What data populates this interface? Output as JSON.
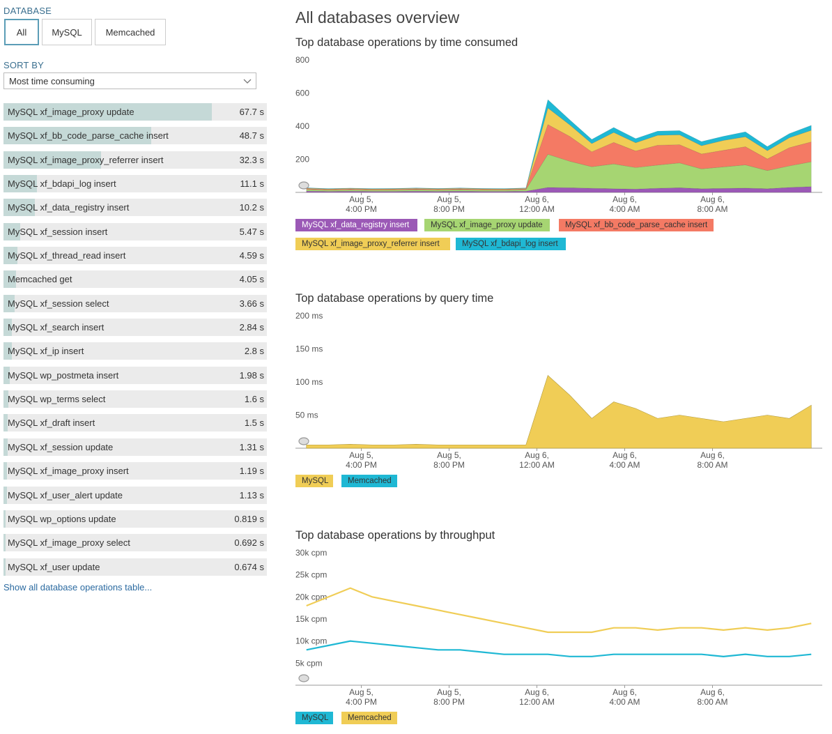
{
  "sidebar": {
    "database_label": "DATABASE",
    "filters": [
      {
        "label": "All",
        "active": true
      },
      {
        "label": "MySQL",
        "active": false
      },
      {
        "label": "Memcached",
        "active": false
      }
    ],
    "sort_label": "SORT BY",
    "sort_value": "Most time consuming",
    "operations": [
      {
        "name": "MySQL xf_image_proxy update",
        "value": "67.7 s",
        "fraction": 0.79
      },
      {
        "name": "MySQL xf_bb_code_parse_cache insert",
        "value": "48.7 s",
        "fraction": 0.56
      },
      {
        "name": "MySQL xf_image_proxy_referrer insert",
        "value": "32.3 s",
        "fraction": 0.37
      },
      {
        "name": "MySQL xf_bdapi_log insert",
        "value": "11.1 s",
        "fraction": 0.128
      },
      {
        "name": "MySQL xf_data_registry insert",
        "value": "10.2 s",
        "fraction": 0.118
      },
      {
        "name": "MySQL xf_session insert",
        "value": "5.47 s",
        "fraction": 0.063
      },
      {
        "name": "MySQL xf_thread_read insert",
        "value": "4.59 s",
        "fraction": 0.053
      },
      {
        "name": "Memcached get",
        "value": "4.05 s",
        "fraction": 0.047
      },
      {
        "name": "MySQL xf_session select",
        "value": "3.66 s",
        "fraction": 0.042
      },
      {
        "name": "MySQL xf_search insert",
        "value": "2.84 s",
        "fraction": 0.033
      },
      {
        "name": "MySQL xf_ip insert",
        "value": "2.8 s",
        "fraction": 0.032
      },
      {
        "name": "MySQL wp_postmeta insert",
        "value": "1.98 s",
        "fraction": 0.023
      },
      {
        "name": "MySQL wp_terms select",
        "value": "1.6 s",
        "fraction": 0.018
      },
      {
        "name": "MySQL xf_draft insert",
        "value": "1.5 s",
        "fraction": 0.017
      },
      {
        "name": "MySQL xf_session update",
        "value": "1.31 s",
        "fraction": 0.015
      },
      {
        "name": "MySQL xf_image_proxy insert",
        "value": "1.19 s",
        "fraction": 0.014
      },
      {
        "name": "MySQL xf_user_alert update",
        "value": "1.13 s",
        "fraction": 0.013
      },
      {
        "name": "MySQL wp_options update",
        "value": "0.819 s",
        "fraction": 0.009
      },
      {
        "name": "MySQL xf_image_proxy select",
        "value": "0.692 s",
        "fraction": 0.008
      },
      {
        "name": "MySQL xf_user update",
        "value": "0.674 s",
        "fraction": 0.008
      }
    ],
    "show_all": "Show all database operations table..."
  },
  "main": {
    "title": "All databases overview"
  },
  "chart_data": [
    {
      "type": "area",
      "stacked": true,
      "title": "Top database operations by time consumed",
      "yticks": [
        "800",
        "600",
        "400",
        "200"
      ],
      "ylim": [
        0,
        800
      ],
      "xticks": [
        "Aug 5,\n4:00 PM",
        "Aug 5,\n8:00 PM",
        "Aug 6,\n12:00 AM",
        "Aug 6,\n4:00 AM",
        "Aug 6,\n8:00 AM"
      ],
      "x_hours": [
        0.5,
        1.5,
        2.5,
        3.5,
        4.5,
        5.5,
        6.5,
        7.5,
        8.5,
        9.5,
        10.5,
        11.5,
        12.5,
        13.5,
        14.5,
        15.5,
        16.5,
        17.5,
        18.5,
        19.5,
        20.5,
        21.5,
        22.5,
        23.5
      ],
      "legend_placement": "bottom",
      "series": [
        {
          "name": "MySQL xf_data_registry insert",
          "color": "#9b59b6",
          "values": [
            8,
            6,
            7,
            6,
            6,
            7,
            6,
            7,
            6,
            6,
            7,
            30,
            28,
            25,
            22,
            20,
            25,
            28,
            22,
            24,
            26,
            22,
            30,
            35
          ]
        },
        {
          "name": "MySQL xf_image_proxy update",
          "color": "#a6d572",
          "values": [
            10,
            8,
            9,
            8,
            9,
            10,
            9,
            10,
            9,
            8,
            10,
            200,
            160,
            130,
            150,
            130,
            140,
            150,
            120,
            130,
            140,
            110,
            130,
            150
          ]
        },
        {
          "name": "MySQL xf_bb_code_parse_cache insert",
          "color": "#f47a64",
          "values": [
            5,
            4,
            5,
            4,
            4,
            5,
            4,
            5,
            4,
            4,
            5,
            180,
            150,
            90,
            130,
            100,
            120,
            110,
            90,
            100,
            110,
            70,
            110,
            120
          ]
        },
        {
          "name": "MySQL xf_image_proxy_referrer insert",
          "color": "#f0cd56",
          "values": [
            3,
            3,
            3,
            3,
            3,
            3,
            3,
            3,
            3,
            3,
            3,
            100,
            70,
            50,
            60,
            50,
            60,
            60,
            50,
            60,
            60,
            50,
            60,
            70
          ]
        },
        {
          "name": "MySQL xf_bdapi_log insert",
          "color": "#1fb8d4",
          "values": [
            2,
            2,
            2,
            2,
            2,
            2,
            2,
            2,
            2,
            2,
            2,
            50,
            30,
            25,
            30,
            25,
            25,
            25,
            25,
            25,
            30,
            25,
            25,
            30
          ]
        }
      ]
    },
    {
      "type": "area",
      "title": "Top database operations by query time",
      "yticks": [
        "200 ms",
        "150 ms",
        "100 ms",
        "50 ms"
      ],
      "ylim": [
        0,
        200
      ],
      "xticks": [
        "Aug 5,\n4:00 PM",
        "Aug 5,\n8:00 PM",
        "Aug 6,\n12:00 AM",
        "Aug 6,\n4:00 AM",
        "Aug 6,\n8:00 AM"
      ],
      "x_hours": [
        0.5,
        1.5,
        2.5,
        3.5,
        4.5,
        5.5,
        6.5,
        7.5,
        8.5,
        9.5,
        10.5,
        11.5,
        12.5,
        13.5,
        14.5,
        15.5,
        16.5,
        17.5,
        18.5,
        19.5,
        20.5,
        21.5,
        22.5,
        23.5
      ],
      "legend_placement": "bottom",
      "series": [
        {
          "name": "MySQL",
          "color": "#f0cd56",
          "values": [
            5,
            5,
            6,
            5,
            5,
            6,
            5,
            5,
            5,
            5,
            5,
            110,
            80,
            45,
            70,
            60,
            45,
            50,
            45,
            40,
            45,
            50,
            45,
            65
          ]
        },
        {
          "name": "Memcached",
          "color": "#1fb8d4",
          "values": [
            0,
            0,
            0,
            0,
            0,
            0,
            0,
            0,
            0,
            0,
            0,
            0,
            0,
            0,
            0,
            0,
            0,
            0,
            0,
            0,
            0,
            0,
            0,
            0
          ]
        }
      ]
    },
    {
      "type": "line",
      "title": "Top database operations by throughput",
      "yticks": [
        "30k cpm",
        "25k cpm",
        "20k cpm",
        "15k cpm",
        "10k cpm",
        "5k cpm"
      ],
      "ylim": [
        0,
        30000
      ],
      "xticks": [
        "Aug 5,\n4:00 PM",
        "Aug 5,\n8:00 PM",
        "Aug 6,\n12:00 AM",
        "Aug 6,\n4:00 AM",
        "Aug 6,\n8:00 AM"
      ],
      "x_hours": [
        0.5,
        1.5,
        2.5,
        3.5,
        4.5,
        5.5,
        6.5,
        7.5,
        8.5,
        9.5,
        10.5,
        11.5,
        12.5,
        13.5,
        14.5,
        15.5,
        16.5,
        17.5,
        18.5,
        19.5,
        20.5,
        21.5,
        22.5,
        23.5
      ],
      "legend_placement": "bottom",
      "series": [
        {
          "name": "MySQL",
          "color": "#1fb8d4",
          "values": [
            8000,
            9000,
            10000,
            9500,
            9000,
            8500,
            8000,
            8000,
            7500,
            7000,
            7000,
            7000,
            6500,
            6500,
            7000,
            7000,
            7000,
            7000,
            7000,
            6500,
            7000,
            6500,
            6500,
            7000
          ]
        },
        {
          "name": "Memcached",
          "color": "#f0cd56",
          "values": [
            18000,
            20000,
            22000,
            20000,
            19000,
            18000,
            17000,
            16000,
            15000,
            14000,
            13000,
            12000,
            12000,
            12000,
            13000,
            13000,
            12500,
            13000,
            13000,
            12500,
            13000,
            12500,
            13000,
            14000
          ]
        }
      ]
    }
  ]
}
